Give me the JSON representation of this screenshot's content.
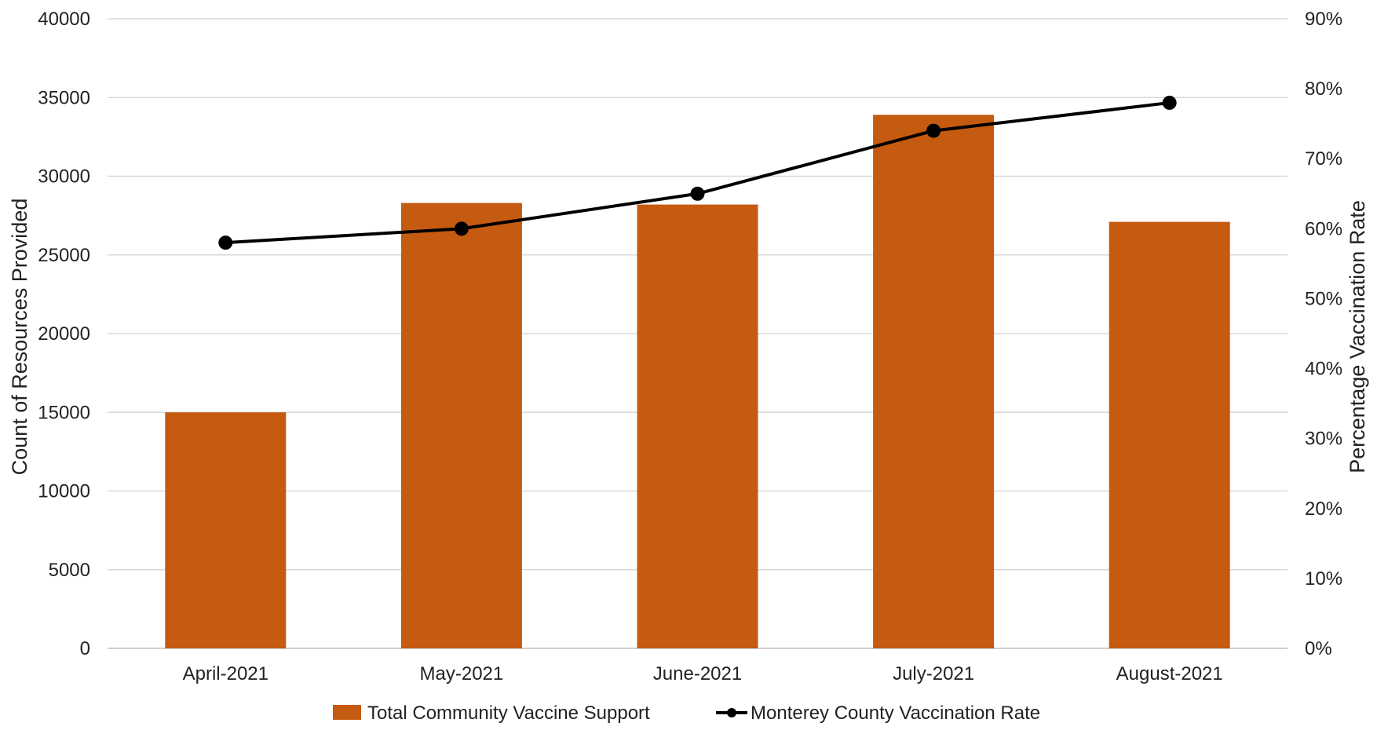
{
  "chart_data": {
    "type": "bar",
    "categories": [
      "April-2021",
      "May-2021",
      "June-2021",
      "July-2021",
      "August-2021"
    ],
    "series": [
      {
        "name": "Total Community Vaccine Support",
        "type": "bar",
        "axis": "left",
        "color": "#C55A11",
        "values": [
          15000,
          28300,
          28200,
          33900,
          27100
        ]
      },
      {
        "name": "Monterey County Vaccination Rate",
        "type": "line",
        "axis": "right",
        "color": "#000000",
        "values": [
          0.58,
          0.6,
          0.65,
          0.74,
          0.78
        ]
      }
    ],
    "y_left": {
      "label": "Count of Resources Provided",
      "ylim": [
        0,
        40000
      ],
      "ticks": [
        0,
        5000,
        10000,
        15000,
        20000,
        25000,
        30000,
        35000,
        40000
      ],
      "tick_labels": [
        "0",
        "5000",
        "10000",
        "15000",
        "20000",
        "25000",
        "30000",
        "35000",
        "40000"
      ]
    },
    "y_right": {
      "label": "Percentage Vaccination Rate",
      "ylim": [
        0,
        0.9
      ],
      "ticks": [
        0,
        0.1,
        0.2,
        0.3,
        0.4,
        0.5,
        0.6,
        0.7,
        0.8,
        0.9
      ],
      "tick_labels": [
        "0%",
        "10%",
        "20%",
        "30%",
        "40%",
        "50%",
        "60%",
        "70%",
        "80%",
        "90%"
      ]
    },
    "grid": true,
    "legend_position": "bottom"
  }
}
